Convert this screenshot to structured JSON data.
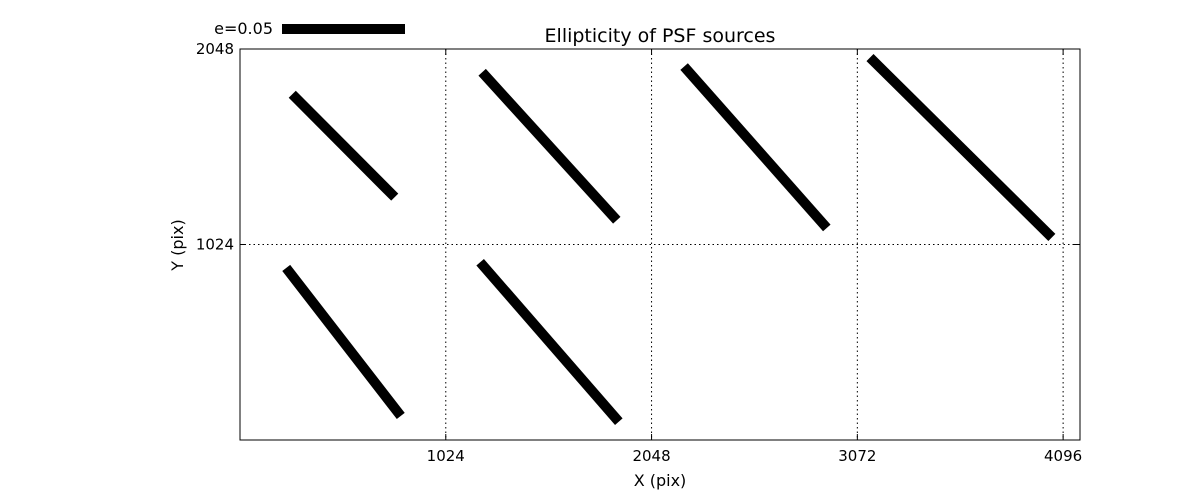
{
  "chart_data": {
    "type": "whisker",
    "title": "Ellipticity of PSF sources",
    "xlabel": "X (pix)",
    "ylabel": "Y (pix)",
    "xlim": [
      0,
      4180
    ],
    "ylim": [
      0,
      2048
    ],
    "x_ticks": [
      1024,
      2048,
      3072,
      4096
    ],
    "x_tick_labels": [
      "1024",
      "2048",
      "3072",
      "4096"
    ],
    "y_ticks": [
      1024,
      2048
    ],
    "y_tick_labels": [
      "1024",
      "2048"
    ],
    "grid": true,
    "legend": {
      "label": "e=0.05",
      "placement": "top-left",
      "reference_ellipticity": 0.05
    },
    "whisker_color": "#000000",
    "whiskers": [
      {
        "x1": 260,
        "y1": 1811,
        "x2": 770,
        "y2": 1272
      },
      {
        "x1": 1205,
        "y1": 1926,
        "x2": 1875,
        "y2": 1151
      },
      {
        "x1": 2210,
        "y1": 1956,
        "x2": 2920,
        "y2": 1111
      },
      {
        "x1": 3135,
        "y1": 2003,
        "x2": 4040,
        "y2": 1061
      },
      {
        "x1": 230,
        "y1": 901,
        "x2": 800,
        "y2": 126
      },
      {
        "x1": 1195,
        "y1": 931,
        "x2": 1885,
        "y2": 96
      }
    ]
  }
}
